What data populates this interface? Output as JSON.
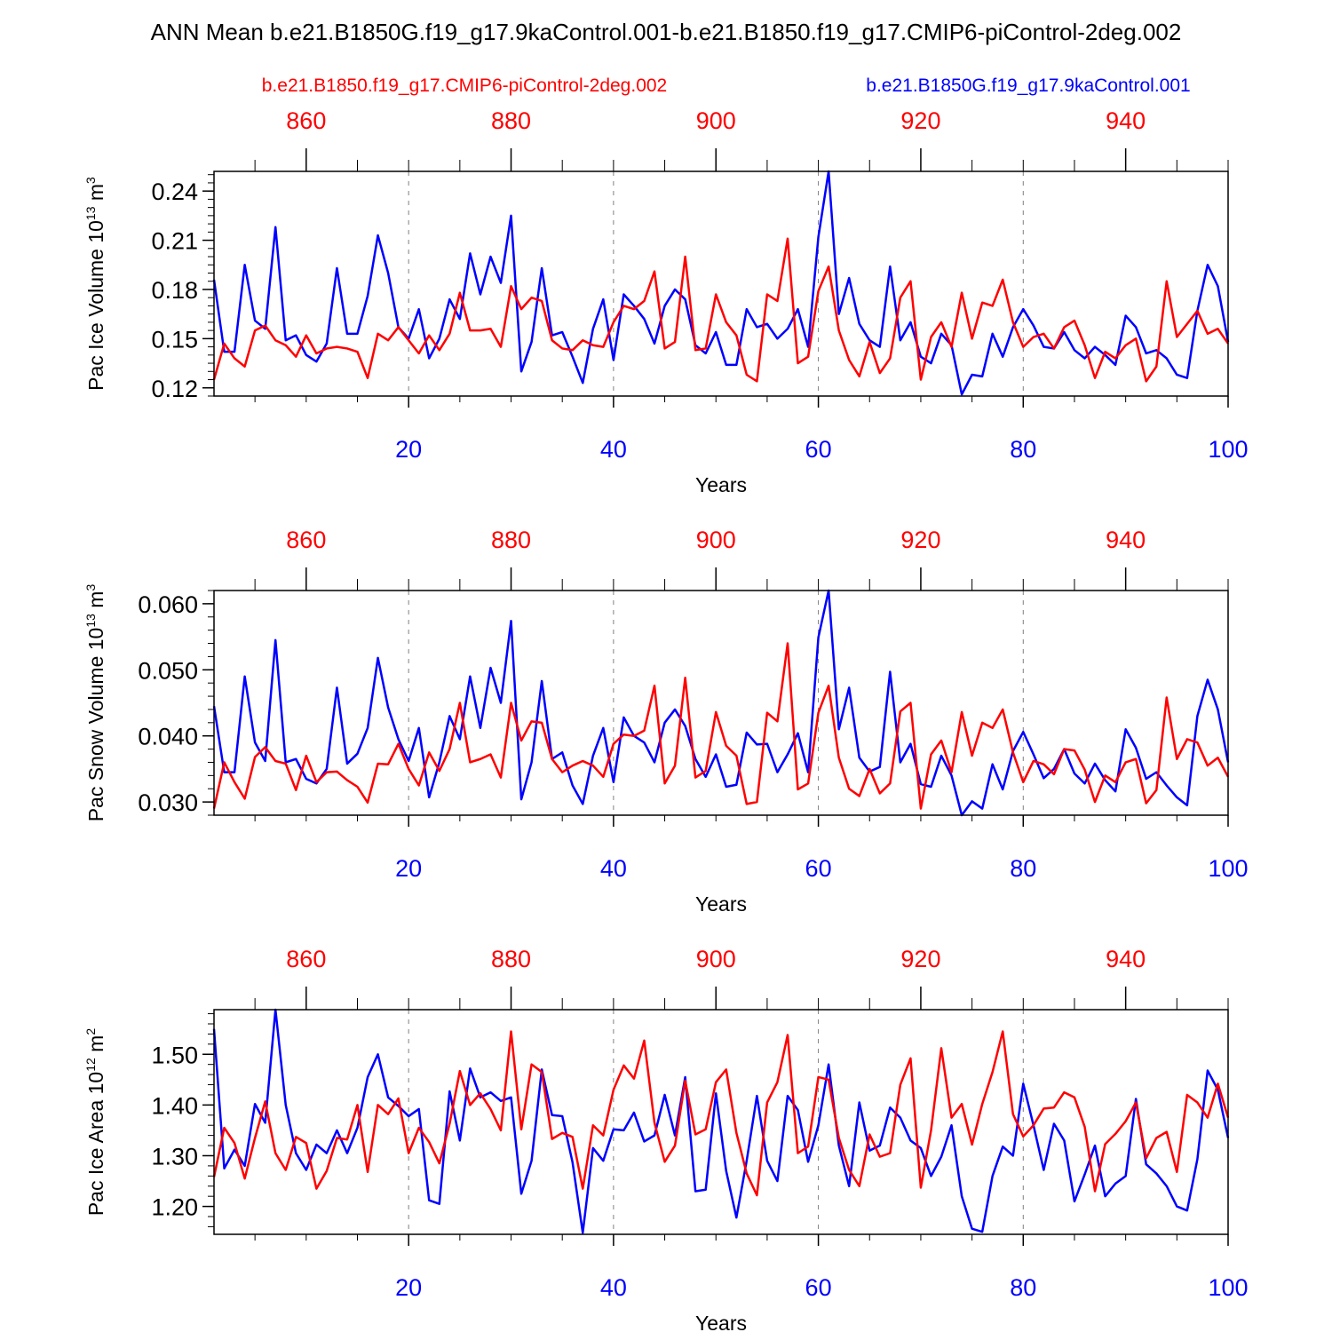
{
  "title": "ANN Mean b.e21.B1850G.f19_g17.9kaControl.001-b.e21.B1850.f19_g17.CMIP6-piControl-2deg.002",
  "legend": {
    "red": "b.e21.B1850.f19_g17.CMIP6-piControl-2deg.002",
    "blue": "b.e21.B1850G.f19_g17.9kaControl.001"
  },
  "colors": {
    "red": "#ff0000",
    "blue": "#0000ff",
    "axis": "#000000",
    "grid": "#808080"
  },
  "chart_data": [
    {
      "type": "line",
      "panel": "ice-volume",
      "ylabel_main": "Pac Ice Volume 10",
      "ylabel_sup": "13",
      "ylabel_unit": " m",
      "ylabel_sup2": "3",
      "xlabel": "Years",
      "xlim": [
        1,
        100
      ],
      "ylim": [
        0.115,
        0.252
      ],
      "yticks": [
        "0.12",
        "0.15",
        "0.18",
        "0.21",
        "0.24"
      ],
      "ytick_values": [
        0.12,
        0.15,
        0.18,
        0.21,
        0.24
      ],
      "yminor_step": 0.005,
      "bottom_ticks": [
        "20",
        "40",
        "60",
        "80",
        "100"
      ],
      "bottom_tick_values": [
        20,
        40,
        60,
        80,
        100
      ],
      "top_ticks": [
        "860",
        "880",
        "900",
        "920",
        "940"
      ],
      "top_tick_values": [
        860,
        880,
        900,
        920,
        940
      ],
      "top_axis_offset": 850,
      "series": [
        {
          "name": "b.e21.B1850G.f19_g17.9kaControl.001",
          "color": "blue",
          "values": [
            0.186,
            0.142,
            0.142,
            0.195,
            0.161,
            0.156,
            0.218,
            0.149,
            0.152,
            0.14,
            0.136,
            0.147,
            0.193,
            0.153,
            0.153,
            0.176,
            0.213,
            0.19,
            0.157,
            0.15,
            0.168,
            0.138,
            0.15,
            0.174,
            0.162,
            0.202,
            0.177,
            0.2,
            0.184,
            0.225,
            0.13,
            0.148,
            0.193,
            0.152,
            0.154,
            0.139,
            0.123,
            0.156,
            0.174,
            0.137,
            0.177,
            0.17,
            0.162,
            0.147,
            0.17,
            0.18,
            0.174,
            0.146,
            0.141,
            0.154,
            0.134,
            0.134,
            0.168,
            0.157,
            0.159,
            0.15,
            0.156,
            0.168,
            0.145,
            0.212,
            0.252,
            0.165,
            0.187,
            0.159,
            0.149,
            0.145,
            0.194,
            0.149,
            0.16,
            0.139,
            0.135,
            0.153,
            0.146,
            0.116,
            0.128,
            0.127,
            0.153,
            0.139,
            0.157,
            0.168,
            0.158,
            0.145,
            0.144,
            0.154,
            0.143,
            0.138,
            0.145,
            0.14,
            0.134,
            0.164,
            0.157,
            0.141,
            0.143,
            0.138,
            0.128,
            0.126,
            0.167,
            0.195,
            0.182,
            0.148
          ]
        },
        {
          "name": "b.e21.B1850.f19_g17.CMIP6-piControl-2deg.002",
          "color": "red",
          "values": [
            0.125,
            0.147,
            0.138,
            0.133,
            0.155,
            0.158,
            0.149,
            0.146,
            0.139,
            0.152,
            0.141,
            0.144,
            0.145,
            0.144,
            0.142,
            0.126,
            0.153,
            0.149,
            0.157,
            0.149,
            0.141,
            0.152,
            0.143,
            0.153,
            0.178,
            0.155,
            0.155,
            0.156,
            0.145,
            0.182,
            0.168,
            0.175,
            0.173,
            0.149,
            0.144,
            0.143,
            0.149,
            0.146,
            0.145,
            0.16,
            0.17,
            0.168,
            0.173,
            0.191,
            0.144,
            0.148,
            0.2,
            0.143,
            0.144,
            0.177,
            0.16,
            0.152,
            0.128,
            0.124,
            0.177,
            0.173,
            0.211,
            0.135,
            0.139,
            0.179,
            0.194,
            0.155,
            0.137,
            0.127,
            0.148,
            0.129,
            0.138,
            0.175,
            0.185,
            0.125,
            0.151,
            0.16,
            0.145,
            0.178,
            0.15,
            0.172,
            0.17,
            0.186,
            0.16,
            0.145,
            0.151,
            0.153,
            0.144,
            0.157,
            0.161,
            0.146,
            0.126,
            0.142,
            0.138,
            0.146,
            0.15,
            0.124,
            0.133,
            0.185,
            0.151,
            0.159,
            0.167,
            0.153,
            0.156,
            0.147
          ]
        }
      ]
    },
    {
      "type": "line",
      "panel": "snow-volume",
      "ylabel_main": "Pac Snow Volume 10",
      "ylabel_sup": "13",
      "ylabel_unit": " m",
      "ylabel_sup2": "3",
      "xlabel": "Years",
      "xlim": [
        1,
        100
      ],
      "ylim": [
        0.028,
        0.062
      ],
      "yticks": [
        "0.030",
        "0.040",
        "0.050",
        "0.060"
      ],
      "ytick_values": [
        0.03,
        0.04,
        0.05,
        0.06
      ],
      "yminor_step": 0.002,
      "bottom_ticks": [
        "20",
        "40",
        "60",
        "80",
        "100"
      ],
      "bottom_tick_values": [
        20,
        40,
        60,
        80,
        100
      ],
      "top_ticks": [
        "860",
        "880",
        "900",
        "920",
        "940"
      ],
      "top_tick_values": [
        860,
        880,
        900,
        920,
        940
      ],
      "top_axis_offset": 850,
      "series": [
        {
          "name": "b.e21.B1850G.f19_g17.9kaControl.001",
          "color": "blue",
          "values": [
            0.0445,
            0.0345,
            0.0345,
            0.049,
            0.039,
            0.0362,
            0.0545,
            0.036,
            0.0365,
            0.0335,
            0.0328,
            0.035,
            0.0473,
            0.0358,
            0.0373,
            0.0412,
            0.0518,
            0.0443,
            0.0395,
            0.0362,
            0.0412,
            0.0307,
            0.036,
            0.043,
            0.0395,
            0.049,
            0.0412,
            0.0503,
            0.045,
            0.0574,
            0.0304,
            0.036,
            0.0483,
            0.0365,
            0.0375,
            0.0325,
            0.0297,
            0.037,
            0.0412,
            0.033,
            0.0428,
            0.04,
            0.039,
            0.036,
            0.042,
            0.044,
            0.0415,
            0.0365,
            0.0338,
            0.0372,
            0.0323,
            0.0326,
            0.0405,
            0.0387,
            0.0388,
            0.0345,
            0.0372,
            0.0404,
            0.0345,
            0.0549,
            0.062,
            0.041,
            0.0473,
            0.0367,
            0.0346,
            0.0353,
            0.0497,
            0.036,
            0.0388,
            0.0327,
            0.0323,
            0.037,
            0.034,
            0.028,
            0.0301,
            0.029,
            0.0357,
            0.0319,
            0.0377,
            0.0406,
            0.0372,
            0.0336,
            0.035,
            0.038,
            0.0343,
            0.0328,
            0.0358,
            0.0333,
            0.0316,
            0.041,
            0.0382,
            0.0335,
            0.0345,
            0.0325,
            0.0307,
            0.0295,
            0.043,
            0.0485,
            0.044,
            0.036
          ]
        },
        {
          "name": "b.e21.B1850.f19_g17.CMIP6-piControl-2deg.002",
          "color": "red",
          "values": [
            0.029,
            0.036,
            0.033,
            0.0305,
            0.0368,
            0.0383,
            0.0362,
            0.0358,
            0.0318,
            0.037,
            0.033,
            0.0345,
            0.0346,
            0.0333,
            0.0323,
            0.0299,
            0.0358,
            0.0357,
            0.0388,
            0.035,
            0.0325,
            0.0375,
            0.0347,
            0.038,
            0.045,
            0.036,
            0.0365,
            0.0372,
            0.0337,
            0.045,
            0.0393,
            0.0422,
            0.042,
            0.0365,
            0.0345,
            0.0355,
            0.0362,
            0.0355,
            0.0338,
            0.0388,
            0.0402,
            0.04,
            0.0408,
            0.0476,
            0.0328,
            0.0355,
            0.0488,
            0.0337,
            0.0347,
            0.0436,
            0.0385,
            0.037,
            0.0297,
            0.03,
            0.0435,
            0.0422,
            0.054,
            0.0319,
            0.0328,
            0.0435,
            0.0476,
            0.0367,
            0.032,
            0.0309,
            0.035,
            0.0313,
            0.0328,
            0.0437,
            0.045,
            0.029,
            0.0372,
            0.0393,
            0.0345,
            0.0436,
            0.037,
            0.042,
            0.0412,
            0.044,
            0.0375,
            0.033,
            0.0362,
            0.0357,
            0.0342,
            0.038,
            0.0378,
            0.0349,
            0.03,
            0.034,
            0.033,
            0.036,
            0.0365,
            0.0298,
            0.0318,
            0.0458,
            0.0365,
            0.0395,
            0.039,
            0.0355,
            0.0367,
            0.0338
          ]
        }
      ]
    },
    {
      "type": "line",
      "panel": "ice-area",
      "ylabel_main": "Pac Ice Area 10",
      "ylabel_sup": "12",
      "ylabel_unit": " m",
      "ylabel_sup2": "2",
      "xlabel": "Years",
      "xlim": [
        1,
        100
      ],
      "ylim": [
        1.145,
        1.588
      ],
      "yticks": [
        "1.20",
        "1.30",
        "1.40",
        "1.50"
      ],
      "ytick_values": [
        1.2,
        1.3,
        1.4,
        1.5
      ],
      "yminor_step": 0.02,
      "bottom_ticks": [
        "20",
        "40",
        "60",
        "80",
        "100"
      ],
      "bottom_tick_values": [
        20,
        40,
        60,
        80,
        100
      ],
      "top_ticks": [
        "860",
        "880",
        "900",
        "920",
        "940"
      ],
      "top_tick_values": [
        860,
        880,
        900,
        920,
        940
      ],
      "top_axis_offset": 850,
      "series": [
        {
          "name": "b.e21.B1850G.f19_g17.9kaControl.001",
          "color": "blue",
          "values": [
            1.55,
            1.275,
            1.312,
            1.28,
            1.402,
            1.365,
            1.588,
            1.4,
            1.305,
            1.272,
            1.322,
            1.305,
            1.35,
            1.305,
            1.355,
            1.455,
            1.5,
            1.415,
            1.398,
            1.378,
            1.392,
            1.212,
            1.205,
            1.427,
            1.33,
            1.472,
            1.415,
            1.425,
            1.408,
            1.415,
            1.225,
            1.29,
            1.47,
            1.38,
            1.378,
            1.287,
            1.148,
            1.315,
            1.29,
            1.352,
            1.35,
            1.385,
            1.328,
            1.34,
            1.42,
            1.34,
            1.455,
            1.23,
            1.233,
            1.423,
            1.27,
            1.178,
            1.29,
            1.418,
            1.29,
            1.25,
            1.418,
            1.39,
            1.288,
            1.36,
            1.48,
            1.32,
            1.24,
            1.405,
            1.31,
            1.32,
            1.395,
            1.375,
            1.33,
            1.315,
            1.26,
            1.298,
            1.36,
            1.22,
            1.156,
            1.15,
            1.26,
            1.318,
            1.3,
            1.442,
            1.36,
            1.272,
            1.363,
            1.33,
            1.21,
            1.263,
            1.32,
            1.22,
            1.245,
            1.26,
            1.412,
            1.283,
            1.265,
            1.24,
            1.2,
            1.192,
            1.293,
            1.468,
            1.43,
            1.335
          ]
        },
        {
          "name": "b.e21.B1850.f19_g17.CMIP6-piControl-2deg.002",
          "color": "red",
          "values": [
            1.258,
            1.355,
            1.325,
            1.255,
            1.335,
            1.407,
            1.305,
            1.272,
            1.337,
            1.325,
            1.235,
            1.27,
            1.335,
            1.332,
            1.4,
            1.268,
            1.4,
            1.382,
            1.413,
            1.305,
            1.355,
            1.327,
            1.285,
            1.363,
            1.467,
            1.4,
            1.423,
            1.392,
            1.35,
            1.545,
            1.352,
            1.48,
            1.465,
            1.333,
            1.345,
            1.337,
            1.235,
            1.36,
            1.34,
            1.43,
            1.478,
            1.452,
            1.527,
            1.365,
            1.288,
            1.32,
            1.448,
            1.342,
            1.352,
            1.445,
            1.47,
            1.345,
            1.265,
            1.222,
            1.405,
            1.445,
            1.538,
            1.305,
            1.318,
            1.455,
            1.45,
            1.335,
            1.272,
            1.24,
            1.342,
            1.298,
            1.305,
            1.44,
            1.492,
            1.237,
            1.35,
            1.512,
            1.375,
            1.402,
            1.322,
            1.402,
            1.465,
            1.545,
            1.382,
            1.338,
            1.36,
            1.393,
            1.395,
            1.425,
            1.415,
            1.357,
            1.23,
            1.323,
            1.343,
            1.368,
            1.405,
            1.295,
            1.335,
            1.347,
            1.268,
            1.42,
            1.405,
            1.375,
            1.442,
            1.375
          ]
        }
      ]
    }
  ]
}
